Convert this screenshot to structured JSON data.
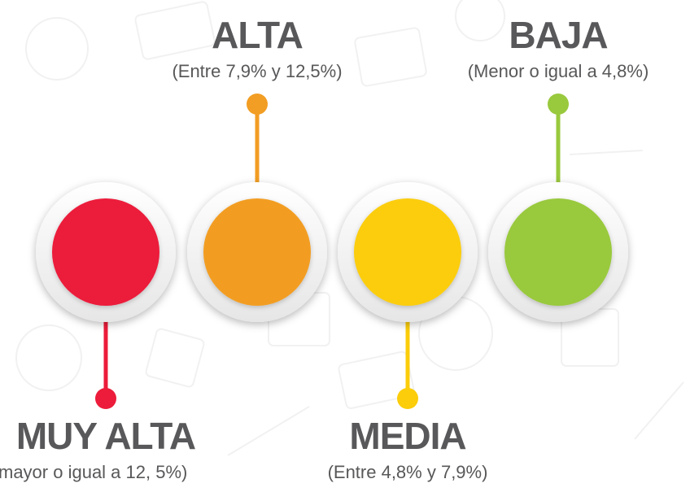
{
  "levels": [
    {
      "title": "MUY ALTA",
      "range": "mayor o igual a 12, 5%)"
    },
    {
      "title": "ALTA",
      "range": "(Entre 7,9% y 12,5%)"
    },
    {
      "title": "MEDIA",
      "range": "(Entre 4,8% y 7,9%)"
    },
    {
      "title": "BAJA",
      "range": "(Menor o igual a 4,8%)"
    }
  ]
}
